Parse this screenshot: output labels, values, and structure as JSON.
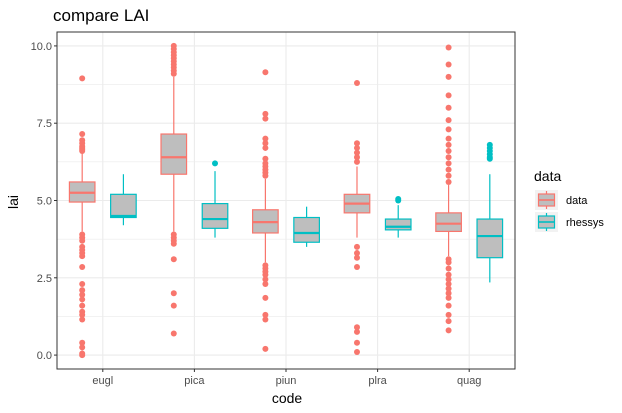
{
  "chart_data": {
    "type": "boxplot",
    "title": "compare LAI",
    "xlabel": "code",
    "ylabel": "lai",
    "ylim": [
      -0.45,
      10.45
    ],
    "yticks": [
      0.0,
      2.5,
      5.0,
      7.5,
      10.0
    ],
    "ytick_labels": [
      "0.0",
      "2.5",
      "5.0",
      "7.5",
      "10.0"
    ],
    "categories": [
      "eugl",
      "pica",
      "piun",
      "plra",
      "quag"
    ],
    "grid": true,
    "legend": {
      "title": "data",
      "position": "right",
      "entries": [
        "data",
        "rhessys"
      ]
    },
    "series": [
      {
        "name": "data",
        "color": "#F8766D",
        "fill": "#BEBEBE",
        "boxes": [
          {
            "q1": 4.95,
            "median": 5.25,
            "q3": 5.6,
            "whisker_low": 4.0,
            "whisker_high": 6.55,
            "outliers": [
              8.95,
              7.15,
              6.95,
              6.85,
              6.75,
              6.7,
              6.65,
              6.6,
              3.9,
              3.8,
              3.7,
              3.5,
              3.4,
              3.3,
              3.2,
              2.85,
              2.3,
              2.1,
              1.95,
              1.8,
              1.6,
              1.4,
              1.3,
              1.15,
              0.4,
              0.25,
              0.05,
              0.0
            ]
          },
          {
            "q1": 5.85,
            "median": 6.4,
            "q3": 7.15,
            "whisker_low": 4.0,
            "whisker_high": 9.0,
            "outliers": [
              10.0,
              9.9,
              9.8,
              9.7,
              9.6,
              9.5,
              9.4,
              9.3,
              9.2,
              9.1,
              3.9,
              3.8,
              3.7,
              3.6,
              3.1,
              2.0,
              1.6,
              0.7
            ]
          },
          {
            "q1": 3.95,
            "median": 4.3,
            "q3": 4.7,
            "whisker_low": 3.0,
            "whisker_high": 5.7,
            "outliers": [
              9.15,
              7.8,
              7.65,
              7.0,
              6.85,
              6.7,
              6.35,
              6.2,
              6.1,
              6.0,
              5.9,
              5.8,
              2.9,
              2.8,
              2.7,
              2.6,
              2.45,
              2.3,
              1.85,
              1.3,
              1.15,
              0.2
            ]
          },
          {
            "q1": 4.6,
            "median": 4.9,
            "q3": 5.2,
            "whisker_low": 3.8,
            "whisker_high": 6.1,
            "outliers": [
              8.8,
              6.85,
              6.7,
              6.55,
              6.4,
              6.25,
              3.5,
              3.3,
              3.15,
              2.85,
              0.9,
              0.75,
              0.4,
              0.1
            ]
          },
          {
            "q1": 4.0,
            "median": 4.25,
            "q3": 4.6,
            "whisker_low": 3.2,
            "whisker_high": 5.5,
            "outliers": [
              9.95,
              9.4,
              9.0,
              8.4,
              8.0,
              7.6,
              7.3,
              7.0,
              6.8,
              6.6,
              6.4,
              6.2,
              6.0,
              5.8,
              5.6,
              3.1,
              3.0,
              2.8,
              2.6,
              2.45,
              2.3,
              2.15,
              2.0,
              1.85,
              1.6,
              1.3,
              1.1,
              0.8
            ]
          }
        ]
      },
      {
        "name": "rhessys",
        "color": "#00BFC4",
        "fill": "#BEBEBE",
        "boxes": [
          {
            "q1": 4.45,
            "median": 4.5,
            "q3": 5.2,
            "whisker_low": 4.2,
            "whisker_high": 5.85,
            "outliers": []
          },
          {
            "q1": 4.1,
            "median": 4.4,
            "q3": 4.9,
            "whisker_low": 3.8,
            "whisker_high": 5.95,
            "outliers": [
              6.2
            ]
          },
          {
            "q1": 3.65,
            "median": 3.95,
            "q3": 4.45,
            "whisker_low": 3.5,
            "whisker_high": 4.8,
            "outliers": []
          },
          {
            "q1": 4.05,
            "median": 4.15,
            "q3": 4.4,
            "whisker_low": 3.8,
            "whisker_high": 4.85,
            "outliers": [
              5.05,
              5.0
            ]
          },
          {
            "q1": 3.15,
            "median": 3.85,
            "q3": 4.4,
            "whisker_low": 2.35,
            "whisker_high": 5.85,
            "outliers": [
              6.8,
              6.7,
              6.6,
              6.5,
              6.4,
              6.35
            ]
          }
        ]
      }
    ]
  }
}
